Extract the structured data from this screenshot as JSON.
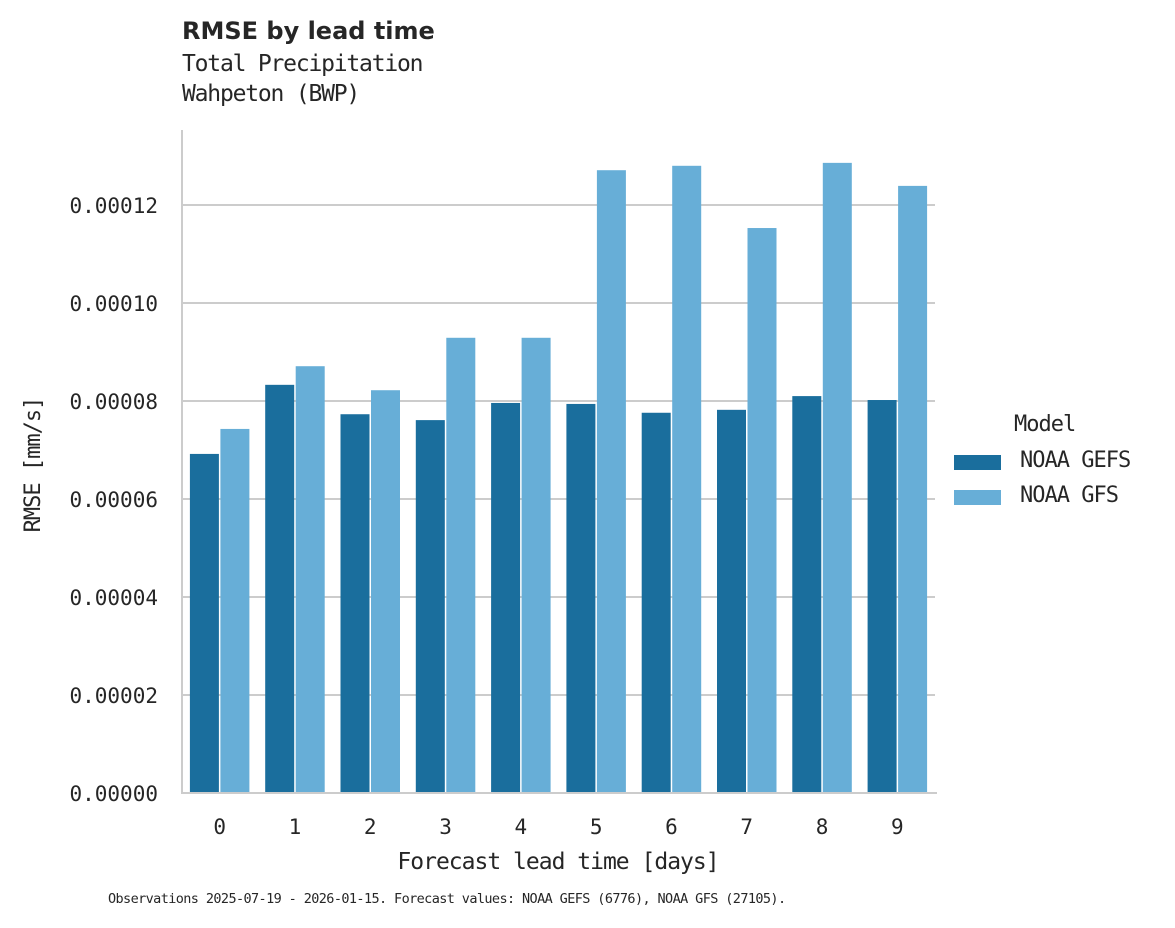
{
  "header": {
    "title": "RMSE by lead time",
    "subtitle_line1": "Total Precipitation",
    "subtitle_line2": "Wahpeton (BWP)"
  },
  "legend": {
    "title": "Model",
    "items": [
      {
        "label": "NOAA GEFS",
        "color": "#1a6e9d"
      },
      {
        "label": "NOAA GFS",
        "color": "#67aed7"
      }
    ]
  },
  "footer": {
    "note": "Observations 2025-07-19 - 2026-01-15. Forecast values: NOAA GEFS (6776), NOAA GFS (27105)."
  },
  "chart_data": {
    "type": "bar",
    "title": "RMSE by lead time",
    "subtitle": [
      "Total Precipitation",
      "Wahpeton (BWP)"
    ],
    "xlabel": "Forecast lead time [days]",
    "ylabel": "RMSE [mm/s]",
    "categories": [
      "0",
      "1",
      "2",
      "3",
      "4",
      "5",
      "6",
      "7",
      "8",
      "9"
    ],
    "series": [
      {
        "name": "NOAA GEFS",
        "color": "#1a6e9d",
        "values": [
          6.92e-05,
          8.33e-05,
          7.73e-05,
          7.61e-05,
          7.96e-05,
          7.94e-05,
          7.76e-05,
          7.82e-05,
          8.1e-05,
          8.02e-05
        ]
      },
      {
        "name": "NOAA GFS",
        "color": "#67aed7",
        "values": [
          7.43e-05,
          8.71e-05,
          8.22e-05,
          9.29e-05,
          9.29e-05,
          0.0001271,
          0.000128,
          0.0001153,
          0.0001286,
          0.0001239
        ]
      }
    ],
    "yticks": [
      0,
      2e-05,
      4e-05,
      6e-05,
      8e-05,
      0.0001,
      0.00012
    ],
    "ytick_labels": [
      "0.00000",
      "0.00002",
      "0.00004",
      "0.00006",
      "0.00008",
      "0.00010",
      "0.00012"
    ],
    "ylim": [
      0,
      0.000135
    ],
    "grid": "horizontal",
    "legend_title": "Model",
    "legend_position": "right",
    "footnote": "Observations 2025-07-19 - 2026-01-15. Forecast values: NOAA GEFS (6776), NOAA GFS (27105)."
  }
}
